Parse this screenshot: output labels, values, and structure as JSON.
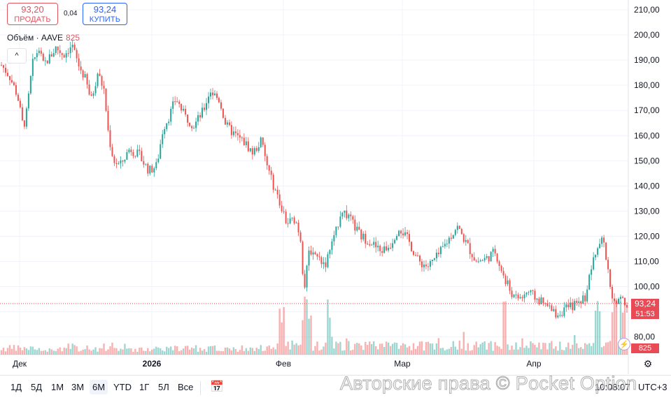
{
  "trade": {
    "sell_price": "93,20",
    "sell_label": "ПРОДАТЬ",
    "buy_price": "93,24",
    "buy_label": "КУПИТЬ",
    "spread": "0,04"
  },
  "volume_legend": {
    "label": "Объём · AAVE",
    "value": "825"
  },
  "collapse_glyph": "^",
  "price_scale": {
    "last_price": "93,24",
    "countdown": "51:53",
    "volume_tag": "825"
  },
  "toolbar": {
    "ranges": [
      "1Д",
      "5Д",
      "1М",
      "3М",
      "6М",
      "YTD",
      "1Г",
      "5Л",
      "Все"
    ],
    "active_range": "6М",
    "clock": "10:08:07",
    "timezone": "UTC+3"
  },
  "watermark": "Авторские права © Pocket Option",
  "colors": {
    "up": "#26a69a",
    "down": "#ef5350",
    "price_tag": "#e84b55",
    "buy": "#2962ff",
    "sell": "#e05460"
  },
  "chart_data": {
    "type": "candlestick",
    "x_tick_labels": [
      "Дек",
      "2026",
      "Фев",
      "Мар",
      "Апр"
    ],
    "y_tick_labels": [
      "210,00",
      "200,00",
      "190,00",
      "180,00",
      "170,00",
      "160,00",
      "150,00",
      "140,00",
      "130,00",
      "120,00",
      "110,00",
      "100,00",
      "80,00"
    ],
    "ylim": [
      75,
      212
    ],
    "last_price": 93.24,
    "close_path": [
      [
        0,
        188
      ],
      [
        0.012,
        184
      ],
      [
        0.025,
        176
      ],
      [
        0.034,
        163
      ],
      [
        0.04,
        170
      ],
      [
        0.048,
        188
      ],
      [
        0.058,
        195
      ],
      [
        0.065,
        188
      ],
      [
        0.075,
        191
      ],
      [
        0.085,
        195
      ],
      [
        0.097,
        192
      ],
      [
        0.11,
        196
      ],
      [
        0.12,
        188
      ],
      [
        0.13,
        183
      ],
      [
        0.14,
        174
      ],
      [
        0.15,
        185
      ],
      [
        0.16,
        178
      ],
      [
        0.167,
        160
      ],
      [
        0.175,
        150
      ],
      [
        0.185,
        148
      ],
      [
        0.2,
        155
      ],
      [
        0.215,
        152
      ],
      [
        0.23,
        146
      ],
      [
        0.242,
        148
      ],
      [
        0.252,
        163
      ],
      [
        0.262,
        168
      ],
      [
        0.272,
        175
      ],
      [
        0.285,
        168
      ],
      [
        0.3,
        164
      ],
      [
        0.315,
        170
      ],
      [
        0.325,
        178
      ],
      [
        0.34,
        174
      ],
      [
        0.35,
        164
      ],
      [
        0.365,
        160
      ],
      [
        0.38,
        157
      ],
      [
        0.392,
        153
      ],
      [
        0.405,
        158
      ],
      [
        0.412,
        150
      ],
      [
        0.42,
        143
      ],
      [
        0.432,
        135
      ],
      [
        0.445,
        125
      ],
      [
        0.458,
        127
      ],
      [
        0.466,
        120
      ],
      [
        0.472,
        98
      ],
      [
        0.48,
        115
      ],
      [
        0.492,
        112
      ],
      [
        0.505,
        109
      ],
      [
        0.52,
        120
      ],
      [
        0.53,
        131
      ],
      [
        0.545,
        126
      ],
      [
        0.56,
        120
      ],
      [
        0.575,
        118
      ],
      [
        0.59,
        114
      ],
      [
        0.605,
        116
      ],
      [
        0.62,
        124
      ],
      [
        0.635,
        118
      ],
      [
        0.65,
        110
      ],
      [
        0.665,
        108
      ],
      [
        0.68,
        112
      ],
      [
        0.695,
        118
      ],
      [
        0.71,
        124
      ],
      [
        0.725,
        117
      ],
      [
        0.74,
        110
      ],
      [
        0.755,
        111
      ],
      [
        0.77,
        114
      ],
      [
        0.78,
        106
      ],
      [
        0.79,
        100
      ],
      [
        0.8,
        95
      ],
      [
        0.812,
        96
      ],
      [
        0.82,
        98
      ],
      [
        0.835,
        95
      ],
      [
        0.85,
        92
      ],
      [
        0.865,
        89
      ],
      [
        0.88,
        91
      ],
      [
        0.895,
        93
      ],
      [
        0.91,
        96
      ],
      [
        0.92,
        108
      ],
      [
        0.93,
        115
      ],
      [
        0.937,
        119
      ],
      [
        0.945,
        109
      ],
      [
        0.95,
        97
      ],
      [
        0.958,
        92
      ],
      [
        0.965,
        95
      ],
      [
        0.975,
        93.24
      ]
    ],
    "volume_spikes": [
      0.437,
      0.472,
      0.48,
      0.51,
      0.785,
      0.93,
      0.955,
      0.968
    ]
  }
}
